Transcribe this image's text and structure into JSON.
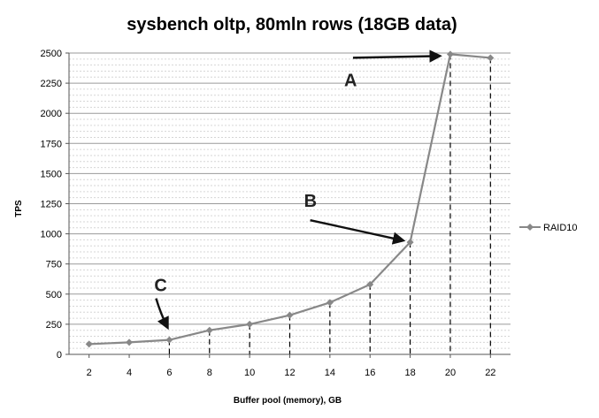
{
  "chart_data": {
    "type": "line",
    "title": "sysbench oltp, 80mln rows (18GB data)",
    "xlabel": "Buffer pool (memory), GB",
    "ylabel": "TPS",
    "x": [
      2,
      4,
      6,
      8,
      10,
      12,
      14,
      16,
      18,
      20,
      22
    ],
    "xticks": [
      "2",
      "4",
      "6",
      "8",
      "10",
      "12",
      "14",
      "16",
      "18",
      "20",
      "22"
    ],
    "yticks": [
      "0",
      "250",
      "500",
      "750",
      "1000",
      "1250",
      "1500",
      "1750",
      "2000",
      "2250",
      "2500"
    ],
    "ylim": [
      0,
      2500
    ],
    "grid": true,
    "legend": "right",
    "series": [
      {
        "name": "RAID10",
        "values": [
          85,
          100,
          120,
          200,
          250,
          325,
          430,
          580,
          930,
          2490,
          2460
        ],
        "color": "#888888"
      }
    ],
    "annotations": [
      {
        "label": "A",
        "x": 20,
        "y": 2490
      },
      {
        "label": "B",
        "x": 18,
        "y": 930
      },
      {
        "label": "C",
        "x": 6,
        "y": 120
      }
    ]
  }
}
